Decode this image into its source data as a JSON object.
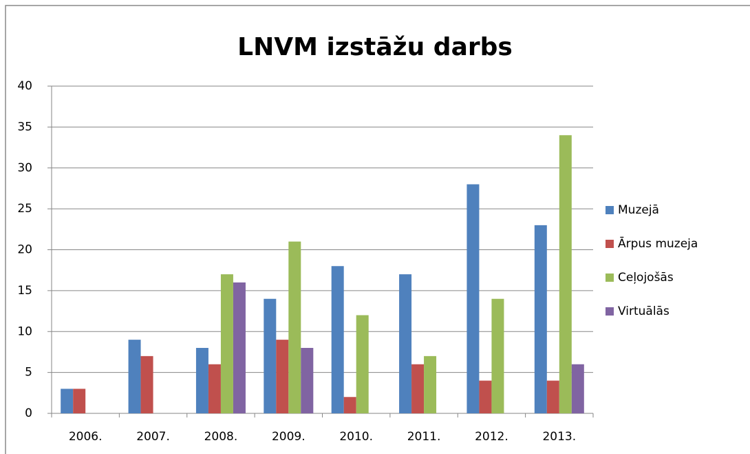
{
  "chart_data": {
    "type": "bar",
    "title": "LNVM izstāžu darbs",
    "categories": [
      "2006.",
      "2007.",
      "2008.",
      "2009.",
      "2010.",
      "2011.",
      "2012.",
      "2013."
    ],
    "series": [
      {
        "name": "Muzejā",
        "color": "#4f81bd",
        "values": [
          3,
          9,
          8,
          14,
          18,
          17,
          28,
          23
        ]
      },
      {
        "name": "Ārpus muzeja",
        "color": "#c0504d",
        "values": [
          3,
          7,
          6,
          9,
          2,
          6,
          4,
          4
        ]
      },
      {
        "name": "Ceļojošās",
        "color": "#9bbb59",
        "values": [
          0,
          0,
          17,
          21,
          12,
          7,
          14,
          34
        ]
      },
      {
        "name": "Virtuālās",
        "color": "#8064a2",
        "values": [
          0,
          0,
          16,
          8,
          0,
          0,
          0,
          6
        ]
      }
    ],
    "ylim": [
      0,
      40
    ],
    "yticks": [
      0,
      5,
      10,
      15,
      20,
      25,
      30,
      35,
      40
    ],
    "grid": true,
    "legend": "right"
  }
}
